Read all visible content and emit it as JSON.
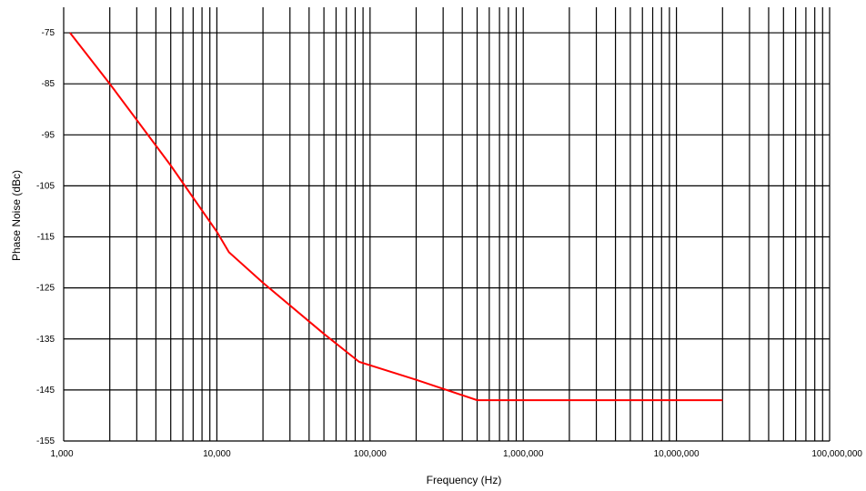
{
  "chart_data": {
    "type": "line",
    "title": "",
    "xlabel": "Frequency (Hz)",
    "ylabel": "Phase Noise (dBc)",
    "x_scale": "log",
    "xlim": [
      1000,
      100000000
    ],
    "ylim": [
      -155,
      -70
    ],
    "x_tick_values": [
      1000,
      10000,
      100000,
      1000000,
      10000000,
      100000000
    ],
    "x_tick_labels": [
      "1,000",
      "10,000",
      "100,000",
      "1,000,000",
      "10,000,000",
      "100,000,000"
    ],
    "y_tick_values": [
      -75,
      -85,
      -95,
      -105,
      -115,
      -125,
      -135,
      -145,
      -155
    ],
    "y_tick_labels": [
      "-75",
      "-85",
      "-95",
      "-105",
      "-115",
      "-125",
      "-135",
      "-145",
      "-155"
    ],
    "grid": true,
    "legend": "none",
    "series": [
      {
        "color": "#ff0000",
        "x": [
          1100,
          2000,
          5000,
          10000,
          12000,
          20000,
          50000,
          85000,
          200000,
          500000,
          1000000,
          10000000,
          20000000
        ],
        "y": [
          -75,
          -85,
          -101,
          -114,
          -118,
          -124,
          -134,
          -139.5,
          -143,
          -147,
          -147,
          -147,
          -147
        ]
      }
    ]
  }
}
